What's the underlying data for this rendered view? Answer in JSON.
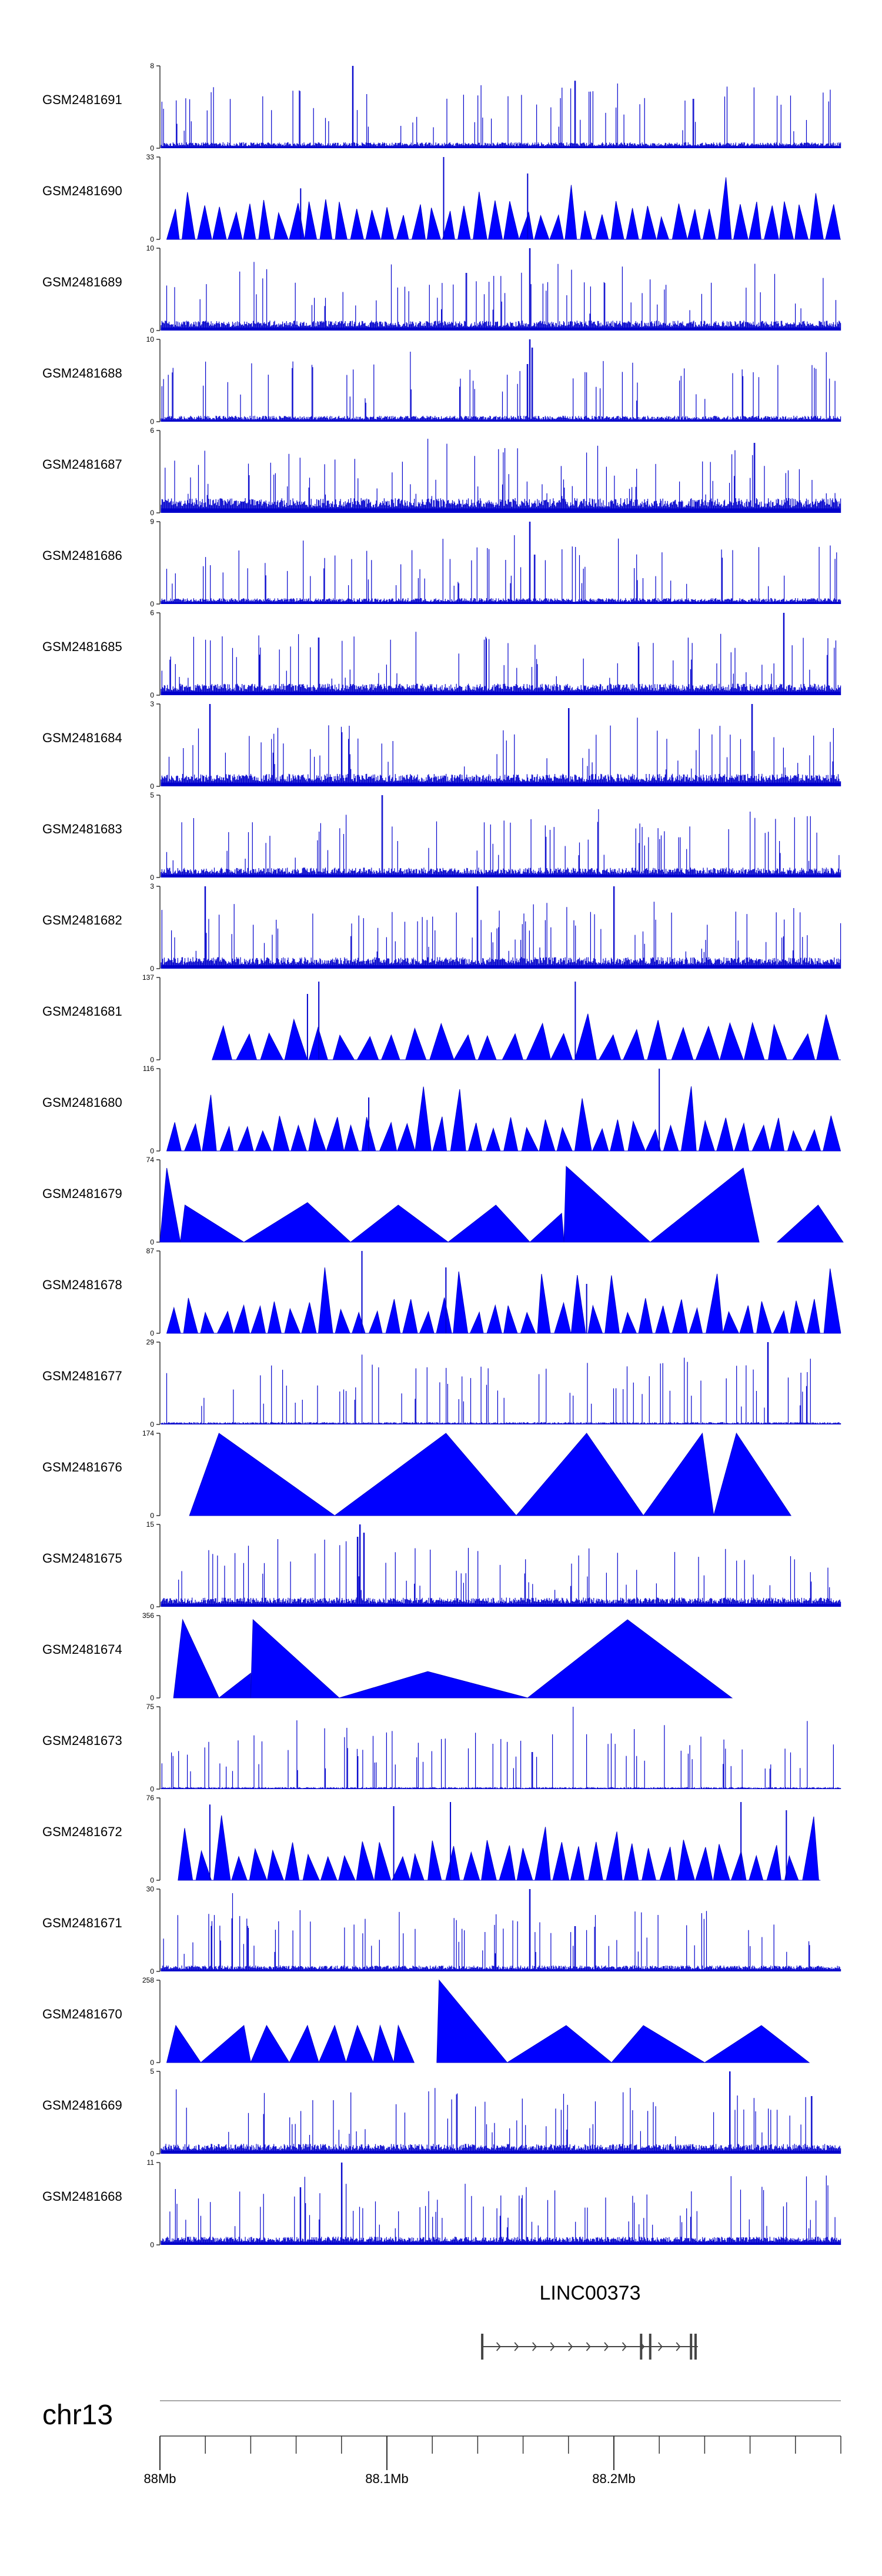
{
  "chart_data": {
    "type": "area",
    "title": "",
    "chromosome": "chr13",
    "xlim": [
      88.0,
      88.3
    ],
    "x_ticks": [
      {
        "pos": 88.0,
        "label": "88Mb"
      },
      {
        "pos": 88.1,
        "label": "88.1Mb"
      },
      {
        "pos": 88.2,
        "label": "88.2Mb"
      }
    ],
    "minor_tick_step": 0.02,
    "tracks": [
      {
        "name": "GSM2481691",
        "ymax": 8,
        "ymin": 0,
        "style": "spiky",
        "seed": 91,
        "base": 0.18,
        "peaks": [
          [
            88.085,
            1.0
          ],
          [
            88.183,
            0.82
          ],
          [
            88.235,
            0.6
          ]
        ]
      },
      {
        "name": "GSM2481690",
        "ymax": 33,
        "ymin": 0,
        "style": "blocky",
        "seed": 90,
        "n": 44,
        "base": 0.45,
        "peaks": [
          [
            88.125,
            1.0
          ],
          [
            88.162,
            0.8
          ],
          [
            88.062,
            0.62
          ]
        ]
      },
      {
        "name": "GSM2481689",
        "ymax": 10,
        "ymin": 0,
        "style": "spiky",
        "seed": 89,
        "base": 0.3,
        "peaks": [
          [
            88.163,
            1.0
          ],
          [
            88.135,
            0.7
          ]
        ]
      },
      {
        "name": "GSM2481688",
        "ymax": 10,
        "ymin": 0,
        "style": "spiky",
        "seed": 88,
        "base": 0.18,
        "peaks": [
          [
            88.163,
            1.0
          ],
          [
            88.164,
            0.9
          ],
          [
            88.162,
            0.7
          ]
        ]
      },
      {
        "name": "GSM2481687",
        "ymax": 6,
        "ymin": 0,
        "style": "spiky",
        "seed": 87,
        "base": 0.45,
        "peaks": [
          [
            88.118,
            0.9
          ],
          [
            88.262,
            0.85
          ]
        ]
      },
      {
        "name": "GSM2481686",
        "ymax": 9,
        "ymin": 0,
        "style": "spiky",
        "seed": 86,
        "base": 0.18,
        "peaks": [
          [
            88.163,
            1.0
          ],
          [
            88.165,
            0.6
          ]
        ]
      },
      {
        "name": "GSM2481685",
        "ymax": 6,
        "ymin": 0,
        "style": "spiky",
        "seed": 85,
        "base": 0.35,
        "peaks": [
          [
            88.275,
            1.0
          ],
          [
            88.07,
            0.7
          ]
        ]
      },
      {
        "name": "GSM2481684",
        "ymax": 3,
        "ymin": 0,
        "style": "spiky",
        "seed": 84,
        "base": 0.38,
        "peaks": [
          [
            88.022,
            1.0
          ],
          [
            88.261,
            1.0
          ],
          [
            88.18,
            0.95
          ]
        ]
      },
      {
        "name": "GSM2481683",
        "ymax": 5,
        "ymin": 0,
        "style": "spiky",
        "seed": 83,
        "base": 0.3,
        "peaks": [
          [
            88.098,
            1.0
          ],
          [
            88.26,
            0.8
          ]
        ]
      },
      {
        "name": "GSM2481682",
        "ymax": 3,
        "ymin": 0,
        "style": "spiky",
        "seed": 82,
        "base": 0.35,
        "peaks": [
          [
            88.02,
            1.0
          ],
          [
            88.14,
            1.0
          ],
          [
            88.2,
            1.0
          ]
        ]
      },
      {
        "name": "GSM2481681",
        "ymax": 137,
        "ymin": 0,
        "style": "blocky",
        "seed": 81,
        "n": 26,
        "base": 0.45,
        "start": 88.023,
        "peaks": [
          [
            88.07,
            0.95
          ],
          [
            88.183,
            0.95
          ],
          [
            88.065,
            0.8
          ]
        ]
      },
      {
        "name": "GSM2481680",
        "ymax": 116,
        "ymin": 0,
        "style": "blocky",
        "seed": 80,
        "n": 38,
        "base": 0.4,
        "peaks": [
          [
            88.22,
            1.0
          ],
          [
            88.092,
            0.65
          ]
        ]
      },
      {
        "name": "GSM2481679",
        "ymax": 74,
        "ymin": 0,
        "style": "peaks",
        "peaks": [
          [
            88.0,
            88.003,
            88.009,
            0.9
          ],
          [
            88.009,
            88.011,
            88.037,
            0.45
          ],
          [
            88.037,
            88.065,
            88.084,
            0.48
          ],
          [
            88.084,
            88.105,
            88.127,
            0.45
          ],
          [
            88.127,
            88.148,
            88.163,
            0.45
          ],
          [
            88.163,
            88.177,
            88.178,
            0.35
          ],
          [
            88.178,
            88.179,
            88.216,
            0.92
          ],
          [
            88.216,
            88.257,
            88.264,
            0.9
          ],
          [
            88.272,
            88.29,
            88.301,
            0.45
          ]
        ]
      },
      {
        "name": "GSM2481678",
        "ymax": 87,
        "ymin": 0,
        "style": "blocky",
        "seed": 78,
        "n": 40,
        "base": 0.4,
        "peaks": [
          [
            88.089,
            1.0
          ],
          [
            88.126,
            0.8
          ],
          [
            88.188,
            0.6
          ]
        ]
      },
      {
        "name": "GSM2481677",
        "ymax": 29,
        "ymin": 0,
        "style": "spiky",
        "seed": 77,
        "base": 0.07,
        "peaks": [
          [
            88.268,
            1.0
          ],
          [
            88.086,
            0.3
          ],
          [
            88.182,
            0.35
          ]
        ]
      },
      {
        "name": "GSM2481676",
        "ymax": 174,
        "ymin": 0,
        "style": "peaks",
        "peaks": [
          [
            88.013,
            88.026,
            88.077,
            1.0
          ],
          [
            88.077,
            88.126,
            88.157,
            1.0
          ],
          [
            88.157,
            88.188,
            88.213,
            1.0
          ],
          [
            88.213,
            88.239,
            88.244,
            1.0
          ],
          [
            88.244,
            88.254,
            88.278,
            1.0
          ]
        ]
      },
      {
        "name": "GSM2481675",
        "ymax": 15,
        "ymin": 0,
        "style": "spiky",
        "seed": 75,
        "base": 0.28,
        "peaks": [
          [
            88.088,
            1.0
          ],
          [
            88.09,
            0.9
          ],
          [
            88.087,
            0.85
          ]
        ]
      },
      {
        "name": "GSM2481674",
        "ymax": 356,
        "ymin": 0,
        "style": "peaks",
        "peaks": [
          [
            88.006,
            88.01,
            88.026,
            0.95
          ],
          [
            88.026,
            88.04,
            88.04,
            0.3
          ],
          [
            88.04,
            88.041,
            88.079,
            0.95
          ],
          [
            88.079,
            88.118,
            88.162,
            0.32
          ],
          [
            88.162,
            88.206,
            88.252,
            0.95
          ]
        ]
      },
      {
        "name": "GSM2481673",
        "ymax": 75,
        "ymin": 0,
        "style": "spiky",
        "seed": 73,
        "base": 0.06,
        "peaks": [
          [
            88.182,
            1.0
          ],
          [
            88.164,
            0.45
          ],
          [
            88.087,
            0.4
          ],
          [
            88.032,
            0.22
          ]
        ]
      },
      {
        "name": "GSM2481672",
        "ymax": 76,
        "ymin": 0,
        "style": "blocky",
        "seed": 72,
        "n": 36,
        "base": 0.45,
        "start": 88.008,
        "end": 88.291,
        "peaks": [
          [
            88.022,
            0.92
          ],
          [
            88.103,
            0.9
          ],
          [
            88.128,
            0.95
          ],
          [
            88.256,
            0.95
          ],
          [
            88.276,
            0.85
          ]
        ]
      },
      {
        "name": "GSM2481671",
        "ymax": 30,
        "ymin": 0,
        "style": "spiky",
        "seed": 71,
        "base": 0.18,
        "peaks": [
          [
            88.163,
            1.0
          ],
          [
            88.032,
            0.95
          ],
          [
            88.183,
            0.55
          ]
        ]
      },
      {
        "name": "GSM2481670",
        "ymax": 258,
        "ymin": 0,
        "style": "peaks",
        "peaks": [
          [
            88.003,
            88.007,
            88.018,
            0.45
          ],
          [
            88.018,
            88.037,
            88.04,
            0.45
          ],
          [
            88.04,
            88.047,
            88.057,
            0.45
          ],
          [
            88.057,
            88.065,
            88.07,
            0.45
          ],
          [
            88.07,
            88.077,
            88.082,
            0.45
          ],
          [
            88.082,
            88.087,
            88.094,
            0.45
          ],
          [
            88.094,
            88.097,
            88.103,
            0.45
          ],
          [
            88.103,
            88.105,
            88.112,
            0.45
          ],
          [
            88.122,
            88.123,
            88.153,
            1.0
          ],
          [
            88.153,
            88.179,
            88.199,
            0.45
          ],
          [
            88.199,
            88.213,
            88.24,
            0.45
          ],
          [
            88.24,
            88.265,
            88.286,
            0.45
          ]
        ]
      },
      {
        "name": "GSM2481669",
        "ymax": 5,
        "ymin": 0,
        "style": "spiky",
        "seed": 69,
        "base": 0.3,
        "peaks": [
          [
            88.251,
            1.0
          ],
          [
            88.287,
            0.7
          ]
        ]
      },
      {
        "name": "GSM2481668",
        "ymax": 11,
        "ymin": 0,
        "style": "spiky",
        "seed": 68,
        "base": 0.25,
        "peaks": [
          [
            88.08,
            1.0
          ],
          [
            88.062,
            0.7
          ]
        ]
      }
    ],
    "gene": {
      "name": "LINC00373",
      "start": 88.142,
      "end": 88.237,
      "strand": "+",
      "exons": [
        [
          88.142,
          88.143
        ],
        [
          88.212,
          88.213
        ],
        [
          88.216,
          88.217
        ],
        [
          88.234,
          88.235
        ],
        [
          88.236,
          88.237
        ]
      ]
    }
  },
  "colors": {
    "signal": "#0000ff",
    "signal_edge": "#0000cc",
    "axis": "#333333",
    "gene": "#444444",
    "text": "#000000",
    "background": "#ffffff"
  }
}
